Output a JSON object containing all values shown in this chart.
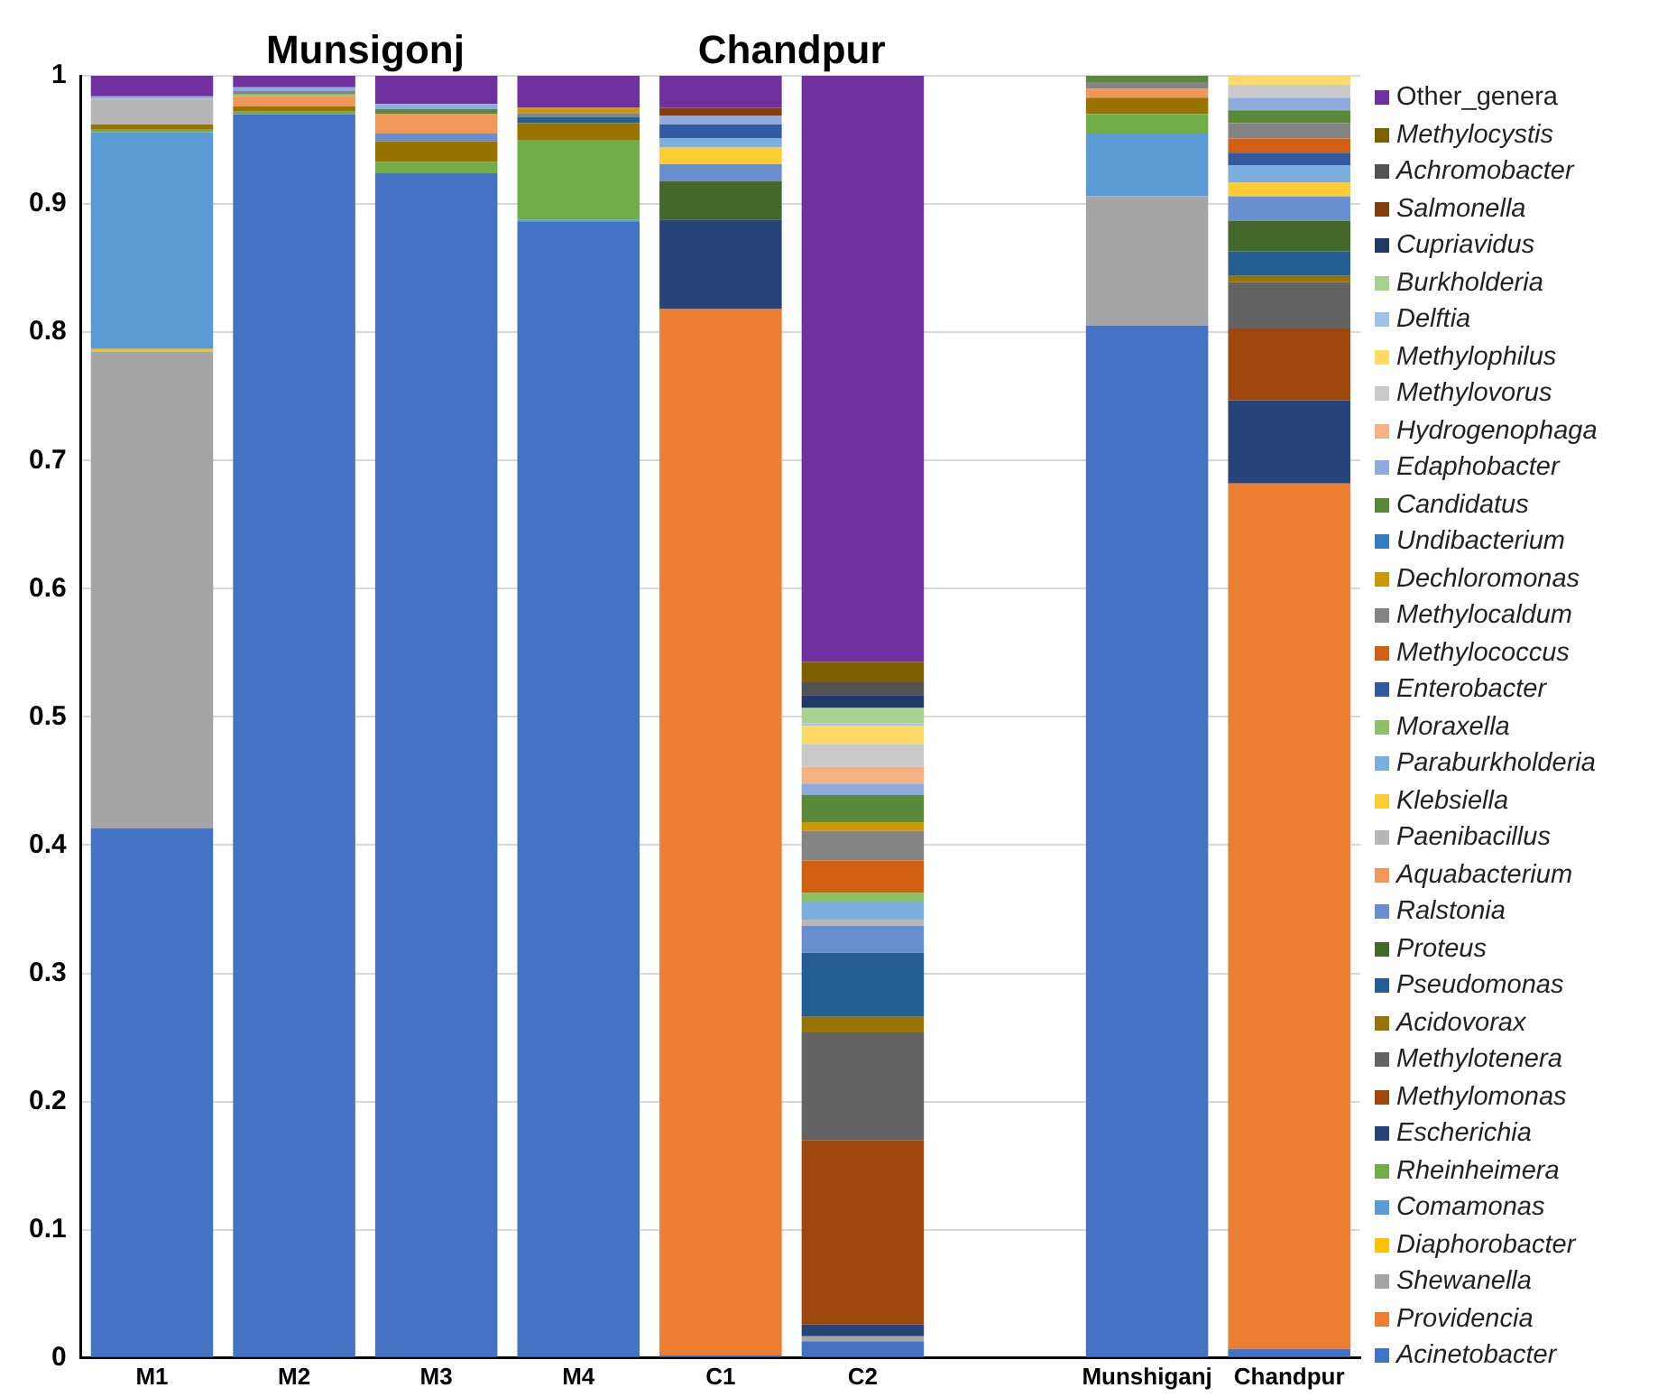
{
  "chart_data": {
    "type": "bar",
    "stacked": true,
    "legend": "right",
    "grid": "y",
    "ylim": [
      0,
      1
    ],
    "yticks": [
      0,
      0.1,
      0.2,
      0.3,
      0.4,
      0.5,
      0.6,
      0.7,
      0.8,
      0.9,
      1
    ],
    "annotations": [
      "Munsigonj",
      "Chandpur"
    ],
    "categories": [
      "M1",
      "M2",
      "M3",
      "M4",
      "C1",
      "C2",
      null,
      "Munshiganj",
      "Chandpur"
    ],
    "series": [
      {
        "name": "Acinetobacter",
        "color": "#4472c4",
        "values": [
          0.413,
          0.97,
          0.924,
          0.886,
          0.002,
          0.013,
          null,
          0.805,
          0.007
        ]
      },
      {
        "name": "Providencia",
        "color": "#ed7d31",
        "values": [
          null,
          null,
          null,
          null,
          0.816,
          null,
          null,
          null,
          0.675
        ]
      },
      {
        "name": "Shewanella",
        "color": "#a5a5a5",
        "values": [
          0.372,
          null,
          null,
          null,
          null,
          0.004,
          null,
          0.101,
          null
        ]
      },
      {
        "name": "Diaphorobacter",
        "color": "#ffc000",
        "values": [
          0.002,
          null,
          null,
          null,
          null,
          null,
          null,
          null,
          null
        ]
      },
      {
        "name": "Comamonas",
        "color": "#5b9bd5",
        "values": [
          0.169,
          null,
          null,
          0.002,
          null,
          null,
          null,
          0.049,
          null
        ]
      },
      {
        "name": "Rheinheimera",
        "color": "#70ad47",
        "values": [
          0.002,
          0.002,
          0.009,
          0.062,
          null,
          null,
          null,
          0.015,
          null
        ]
      },
      {
        "name": "Escherichia",
        "color": "#264478",
        "values": [
          null,
          null,
          null,
          null,
          0.07,
          0.009,
          null,
          null,
          0.065
        ]
      },
      {
        "name": "Methylomonas",
        "color": "#9e480e",
        "values": [
          null,
          null,
          null,
          null,
          null,
          0.144,
          null,
          null,
          0.056
        ]
      },
      {
        "name": "Methylotenera",
        "color": "#636363",
        "values": [
          null,
          null,
          null,
          null,
          null,
          0.084,
          null,
          null,
          0.036
        ]
      },
      {
        "name": "Acidovorax",
        "color": "#997300",
        "values": [
          0.004,
          0.004,
          0.016,
          0.013,
          null,
          0.012,
          null,
          0.013,
          0.005
        ]
      },
      {
        "name": "Pseudomonas",
        "color": "#255e91",
        "values": [
          null,
          null,
          null,
          0.005,
          null,
          0.05,
          null,
          null,
          0.019
        ]
      },
      {
        "name": "Proteus",
        "color": "#43682b",
        "values": [
          null,
          null,
          null,
          null,
          0.03,
          null,
          null,
          null,
          0.024
        ]
      },
      {
        "name": "Ralstonia",
        "color": "#698ed0",
        "values": [
          null,
          null,
          0.006,
          null,
          0.013,
          0.021,
          null,
          null,
          0.019
        ]
      },
      {
        "name": "Aquabacterium",
        "color": "#f1975a",
        "values": [
          null,
          0.008,
          0.015,
          null,
          null,
          null,
          null,
          0.007,
          null
        ]
      },
      {
        "name": "Paenibacillus",
        "color": "#b7b7b7",
        "values": [
          0.02,
          null,
          null,
          null,
          null,
          0.005,
          null,
          null,
          null
        ]
      },
      {
        "name": "Klebsiella",
        "color": "#ffcd33",
        "values": [
          null,
          null,
          null,
          null,
          0.013,
          null,
          null,
          null,
          0.011
        ]
      },
      {
        "name": "Paraburkholderia",
        "color": "#7cafdd",
        "values": [
          null,
          null,
          null,
          null,
          0.007,
          0.014,
          null,
          null,
          0.013
        ]
      },
      {
        "name": "Moraxella",
        "color": "#8cc168",
        "values": [
          null,
          0.002,
          null,
          null,
          null,
          0.007,
          null,
          null,
          null
        ]
      },
      {
        "name": "Enterobacter",
        "color": "#335aa1",
        "values": [
          null,
          null,
          null,
          null,
          0.011,
          null,
          null,
          null,
          0.01
        ]
      },
      {
        "name": "Methylococcus",
        "color": "#d26012",
        "values": [
          null,
          null,
          null,
          null,
          null,
          0.025,
          null,
          null,
          0.011
        ]
      },
      {
        "name": "Methylocaldum",
        "color": "#848484",
        "values": [
          null,
          0.002,
          null,
          0.003,
          null,
          0.023,
          null,
          0.005,
          0.012
        ]
      },
      {
        "name": "Dechloromonas",
        "color": "#cc9a00",
        "values": [
          null,
          null,
          null,
          0.004,
          null,
          0.007,
          null,
          null,
          null
        ]
      },
      {
        "name": "Undibacterium",
        "color": "#327dc2",
        "values": [
          null,
          null,
          null,
          null,
          null,
          null,
          null,
          null,
          null
        ]
      },
      {
        "name": "Candidatus",
        "color": "#5a8a39",
        "values": [
          null,
          null,
          0.004,
          null,
          null,
          0.021,
          null,
          0.005,
          0.01
        ]
      },
      {
        "name": "Edaphobacter",
        "color": "#8faadc",
        "values": [
          0.002,
          0.003,
          0.004,
          null,
          0.007,
          0.009,
          null,
          null,
          0.01
        ]
      },
      {
        "name": "Hydrogenophaga",
        "color": "#f4b183",
        "values": [
          null,
          null,
          null,
          null,
          null,
          0.013,
          null,
          null,
          null
        ]
      },
      {
        "name": "Methylovorus",
        "color": "#c9c9c9",
        "values": [
          null,
          null,
          null,
          null,
          null,
          0.018,
          null,
          null,
          0.01
        ]
      },
      {
        "name": "Methylophilus",
        "color": "#ffd966",
        "values": [
          null,
          null,
          null,
          null,
          null,
          0.014,
          null,
          null,
          0.007
        ]
      },
      {
        "name": "Delftia",
        "color": "#9dc3e6",
        "values": [
          null,
          null,
          null,
          null,
          null,
          0.002,
          null,
          null,
          null
        ]
      },
      {
        "name": "Burkholderia",
        "color": "#a9d18e",
        "values": [
          null,
          null,
          null,
          null,
          null,
          0.012,
          null,
          null,
          null
        ]
      },
      {
        "name": "Cupriavidus",
        "color": "#203864",
        "values": [
          null,
          null,
          null,
          null,
          null,
          0.01,
          null,
          null,
          null
        ]
      },
      {
        "name": "Salmonella",
        "color": "#843c0c",
        "values": [
          null,
          null,
          null,
          null,
          0.006,
          null,
          null,
          null,
          null
        ]
      },
      {
        "name": "Achromobacter",
        "color": "#525252",
        "values": [
          null,
          null,
          null,
          null,
          null,
          0.01,
          null,
          null,
          null
        ]
      },
      {
        "name": "Methylocystis",
        "color": "#7f6000",
        "values": [
          null,
          null,
          null,
          null,
          null,
          0.016,
          null,
          null,
          null
        ]
      },
      {
        "name": "Other_genera",
        "color": "#7030a0",
        "values": [
          0.016,
          0.009,
          0.022,
          0.025,
          0.025,
          0.457,
          null,
          null,
          null
        ]
      }
    ]
  }
}
